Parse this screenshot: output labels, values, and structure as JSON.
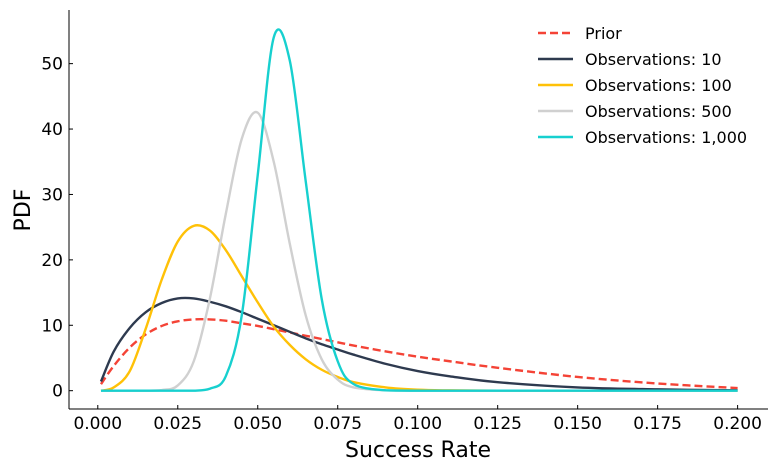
{
  "chart_data": {
    "type": "line",
    "title": "",
    "xlabel": "Success Rate",
    "ylabel": "PDF",
    "xlim": [
      -0.009,
      0.2095
    ],
    "ylim": [
      -2.8,
      58.2
    ],
    "x_ticks": [
      0.0,
      0.025,
      0.05,
      0.075,
      0.1,
      0.125,
      0.15,
      0.175,
      0.2
    ],
    "x_tick_labels": [
      "0.000",
      "0.025",
      "0.050",
      "0.075",
      "0.100",
      "0.125",
      "0.150",
      "0.175",
      "0.200"
    ],
    "y_ticks": [
      0,
      10,
      20,
      30,
      40,
      50
    ],
    "y_tick_labels": [
      "0",
      "10",
      "20",
      "30",
      "40",
      "50"
    ],
    "legend_position": "top-right",
    "grid": false,
    "x": [
      0.001,
      0.005,
      0.01,
      0.015,
      0.02,
      0.025,
      0.03,
      0.035,
      0.04,
      0.045,
      0.05,
      0.055,
      0.06,
      0.065,
      0.07,
      0.075,
      0.08,
      0.09,
      0.1,
      0.11,
      0.125,
      0.15,
      0.175,
      0.2
    ],
    "series": [
      {
        "name": "Prior",
        "color": "#f44336",
        "style": "dashed",
        "values": [
          1.0,
          3.8,
          6.6,
          8.6,
          9.9,
          10.6,
          10.9,
          10.9,
          10.7,
          10.3,
          9.9,
          9.4,
          8.9,
          8.4,
          7.9,
          7.4,
          6.9,
          6.0,
          5.2,
          4.5,
          3.5,
          2.1,
          1.1,
          0.4
        ]
      },
      {
        "name": "Observations: 10",
        "color": "#2e3a4f",
        "style": "solid",
        "values": [
          1.4,
          6.0,
          9.6,
          12.0,
          13.4,
          14.1,
          14.1,
          13.6,
          12.9,
          12.0,
          11.0,
          10.0,
          9.0,
          8.0,
          7.1,
          6.3,
          5.5,
          4.1,
          3.0,
          2.2,
          1.3,
          0.5,
          0.2,
          0.05
        ]
      },
      {
        "name": "Observations: 100",
        "color": "#ffc107",
        "style": "solid",
        "values": [
          0.0,
          0.5,
          3.0,
          9.5,
          17.0,
          22.8,
          25.2,
          24.5,
          21.5,
          17.5,
          13.5,
          9.8,
          7.0,
          4.8,
          3.2,
          2.1,
          1.3,
          0.5,
          0.15,
          0.05,
          0.0,
          0.0,
          0.0,
          0.0
        ]
      },
      {
        "name": "Observations: 500",
        "color": "#d0d0d0",
        "style": "solid",
        "values": [
          0.0,
          0.0,
          0.0,
          0.0,
          0.1,
          0.8,
          4.5,
          14.0,
          27.0,
          38.5,
          42.5,
          35.0,
          22.5,
          11.5,
          4.8,
          1.7,
          0.5,
          0.05,
          0.0,
          0.0,
          0.0,
          0.0,
          0.0,
          0.0
        ]
      },
      {
        "name": "Observations: 1,000",
        "color": "#17d0cf",
        "style": "solid",
        "values": [
          0.0,
          0.0,
          0.0,
          0.0,
          0.0,
          0.0,
          0.0,
          0.3,
          2.2,
          11.5,
          33.0,
          54.0,
          50.5,
          32.0,
          14.0,
          4.5,
          1.0,
          0.05,
          0.0,
          0.0,
          0.0,
          0.0,
          0.0,
          0.0
        ]
      }
    ]
  }
}
